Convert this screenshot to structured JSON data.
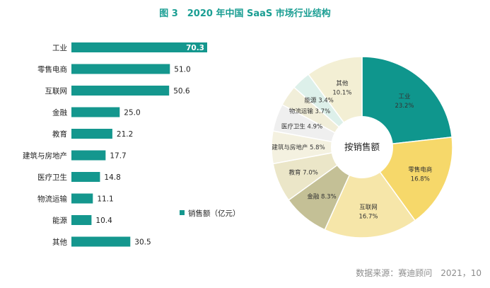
{
  "figure_title": "图 3　2020 年中国 SaaS 市场行业结构",
  "source_note": "数据来源：赛迪顾问　2021，10",
  "colors": {
    "bar": "#14978e",
    "accent_title": "#1a9e93"
  },
  "chart_data": [
    {
      "type": "bar",
      "orientation": "horizontal",
      "categories": [
        "工业",
        "零售电商",
        "互联网",
        "金融",
        "教育",
        "建筑与房地产",
        "医疗卫生",
        "物流运输",
        "能源",
        "其他"
      ],
      "series": [
        {
          "name": "销售额（亿元）",
          "values": [
            70.3,
            51.0,
            50.6,
            25.0,
            21.2,
            17.7,
            14.8,
            11.1,
            10.4,
            30.5
          ]
        }
      ],
      "value_labels": [
        "70.3",
        "51.0",
        "50.6",
        "25.0",
        "21.2",
        "17.7",
        "14.8",
        "11.1",
        "10.4",
        "30.5"
      ],
      "legend": "销售额（亿元）",
      "legend_position": "right",
      "xlim": [
        0,
        70.3
      ],
      "grid": false
    },
    {
      "type": "pie",
      "donut": true,
      "center_label": "按销售额",
      "slices": [
        {
          "label": "工业",
          "value": 23.2,
          "text": "23.2%",
          "color": "#0f968d"
        },
        {
          "label": "零售电商",
          "value": 16.8,
          "text": "16.8%",
          "color": "#f6d86a"
        },
        {
          "label": "互联网",
          "value": 16.7,
          "text": "16.7%",
          "color": "#f6e6a9"
        },
        {
          "label": "金融",
          "value": 8.3,
          "text": "8.3%",
          "color": "#c4c096"
        },
        {
          "label": "教育",
          "value": 7.0,
          "text": "7.0%",
          "color": "#ebe6c8"
        },
        {
          "label": "建筑与房地产",
          "value": 5.8,
          "text": "5.8%",
          "color": "#f4f1e0"
        },
        {
          "label": "医疗卫生",
          "value": 4.9,
          "text": "4.9%",
          "color": "#efefef"
        },
        {
          "label": "物流运输",
          "value": 3.7,
          "text": "3.7%",
          "color": "#f1eed9"
        },
        {
          "label": "能源",
          "value": 3.4,
          "text": "3.4%",
          "color": "#ddf0ea"
        },
        {
          "label": "其他",
          "value": 10.1,
          "text": "10.1%",
          "color": "#f3efd4"
        }
      ]
    }
  ]
}
